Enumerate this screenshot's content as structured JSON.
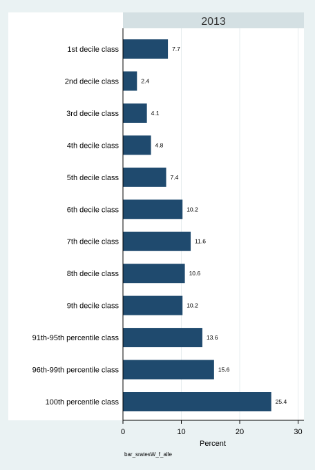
{
  "chart_data": {
    "type": "bar",
    "orientation": "horizontal",
    "title": "2013",
    "xlabel": "Percent",
    "note": "bar_sratesW_f_alle",
    "xlim": [
      0,
      31
    ],
    "xticks": [
      0,
      10,
      20,
      30
    ],
    "grid": true,
    "categories": [
      "1st decile class",
      "2nd decile class",
      "3rd decile class",
      "4th decile class",
      "5th decile class",
      "6th decile class",
      "7th decile class",
      "8th decile class",
      "9th decile class",
      "91th-95th percentile class",
      "96th-99th percentile class",
      "100th percentile class"
    ],
    "values": [
      7.7,
      2.4,
      4.1,
      4.8,
      7.4,
      10.2,
      11.6,
      10.6,
      10.2,
      13.6,
      15.6,
      25.4
    ],
    "value_labels": [
      "7.7",
      "2.4",
      "4.1",
      "4.8",
      "7.4",
      "10.2",
      "11.6",
      "10.6",
      "10.2",
      "13.6",
      "15.6",
      "25.4"
    ],
    "colors": {
      "page_background": "#eaf2f3",
      "plot_background": "#ffffff",
      "title_band": "#d4e0e3",
      "bar": "#1f4a6e",
      "grid": "#e6ecee",
      "axis": "#000000"
    }
  }
}
